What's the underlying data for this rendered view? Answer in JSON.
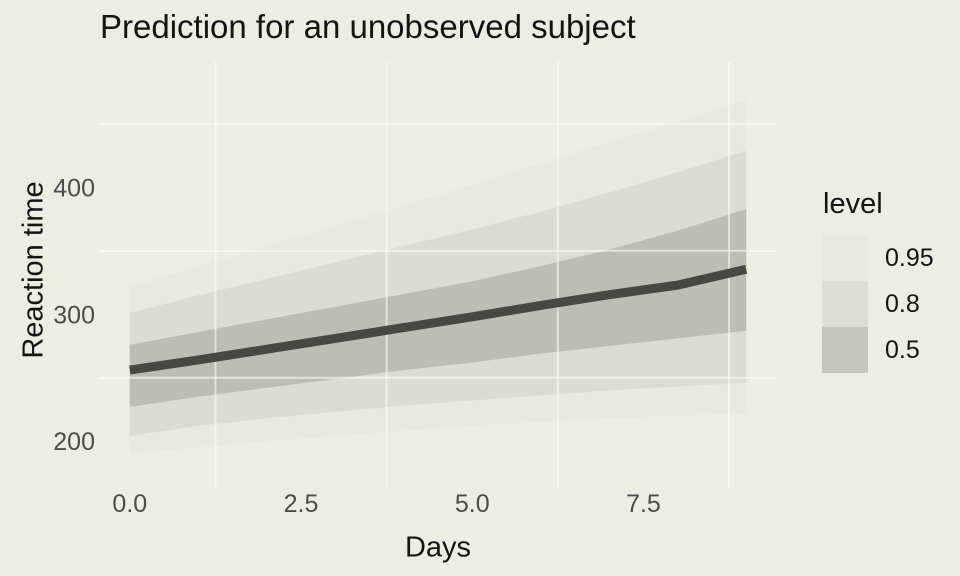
{
  "title": "Prediction for an unobserved subject",
  "colors": {
    "background": "#ecede3",
    "grid_minor": "rgba(255,255,255,0.55)",
    "tick_label": "#4d4d4d",
    "axis_title": "#141414",
    "prediction_line": "#474744"
  },
  "chart_data": {
    "type": "area",
    "title": "Prediction for an unobserved subject",
    "xlabel": "Days",
    "ylabel": "Reaction time",
    "x": [
      0,
      1,
      2,
      3,
      4,
      5,
      6,
      7,
      8,
      9
    ],
    "series": [
      {
        "name": "interval-0.95",
        "kind": "band",
        "level": "0.95",
        "fill": "#e8e9df",
        "upper": [
          322,
          338,
          354,
          370,
          386,
          402,
          419,
          436,
          452,
          469
        ],
        "lower": [
          190,
          195,
          200,
          204,
          208,
          212,
          215,
          218,
          220,
          222
        ]
      },
      {
        "name": "interval-0.8",
        "kind": "band",
        "level": "0.8",
        "fill": "#dbdcd3",
        "upper": [
          301,
          315,
          328,
          341,
          354,
          367,
          381,
          396,
          412,
          429
        ],
        "lower": [
          204,
          212,
          218,
          223,
          228,
          232,
          236,
          240,
          243,
          246
        ]
      },
      {
        "name": "interval-0.5",
        "kind": "band",
        "level": "0.5",
        "fill": "#bcbdb5",
        "upper": [
          276,
          286,
          296,
          306,
          316,
          326,
          338,
          351,
          366,
          383
        ],
        "lower": [
          227,
          235,
          242,
          249,
          256,
          262,
          269,
          275,
          281,
          287
        ]
      },
      {
        "name": "prediction-median",
        "kind": "line",
        "stroke": "#474744",
        "width": 9,
        "values": [
          256,
          264,
          272.5,
          281,
          289.5,
          298,
          307,
          315.5,
          323,
          335.5
        ]
      }
    ],
    "x_ticks": {
      "values": [
        0,
        2.5,
        5,
        7.5
      ],
      "labels": [
        "0.0",
        "2.5",
        "5.0",
        "7.5"
      ]
    },
    "y_ticks": {
      "values": [
        200,
        300,
        400
      ],
      "labels": [
        "200",
        "300",
        "400"
      ]
    },
    "minor_grid_x": [
      1.25,
      3.75,
      6.25,
      8.75
    ],
    "minor_grid_y": [
      250,
      350,
      450
    ],
    "xlim": [
      -0.45,
      9.45
    ],
    "ylim": [
      163,
      499
    ],
    "grid": "minor-only-on-top",
    "legend": {
      "title": "level",
      "position": "right",
      "entries": [
        {
          "label": "0.95",
          "color": "#e8e9df"
        },
        {
          "label": "0.8",
          "color": "#dcddd4"
        },
        {
          "label": "0.5",
          "color": "#c5c6be"
        }
      ]
    }
  }
}
